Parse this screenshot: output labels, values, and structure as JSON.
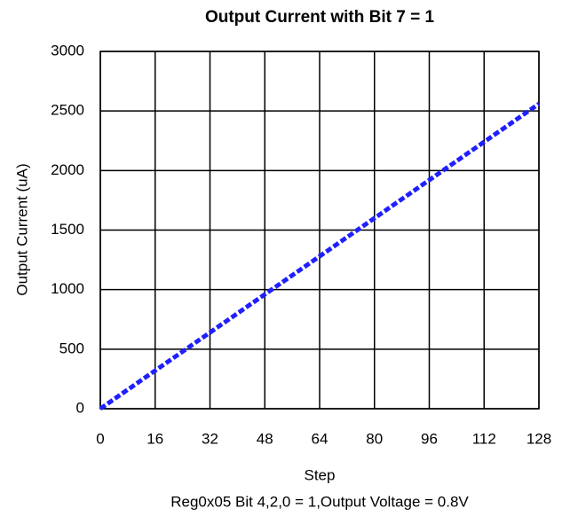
{
  "chart_data": {
    "type": "line",
    "title": "Output Current with Bit 7 = 1",
    "xlabel": "Step",
    "ylabel": "Output Current (uA)",
    "caption": "Reg0x05 Bit 4,2,0 = 1,Output Voltage = 0.8V",
    "x": [
      0,
      16,
      32,
      48,
      64,
      80,
      96,
      112,
      128
    ],
    "series": [
      {
        "color": "#1f1fff",
        "values": [
          0,
          320,
          640,
          960,
          1280,
          1600,
          1920,
          2240,
          2560
        ]
      }
    ],
    "xlim": [
      0,
      128
    ],
    "xticks": [
      0,
      16,
      32,
      48,
      64,
      80,
      96,
      112,
      128
    ],
    "ylim": [
      0,
      3000
    ],
    "yticks": [
      0,
      500,
      1000,
      1500,
      2000,
      2500,
      3000
    ],
    "grid": true
  }
}
